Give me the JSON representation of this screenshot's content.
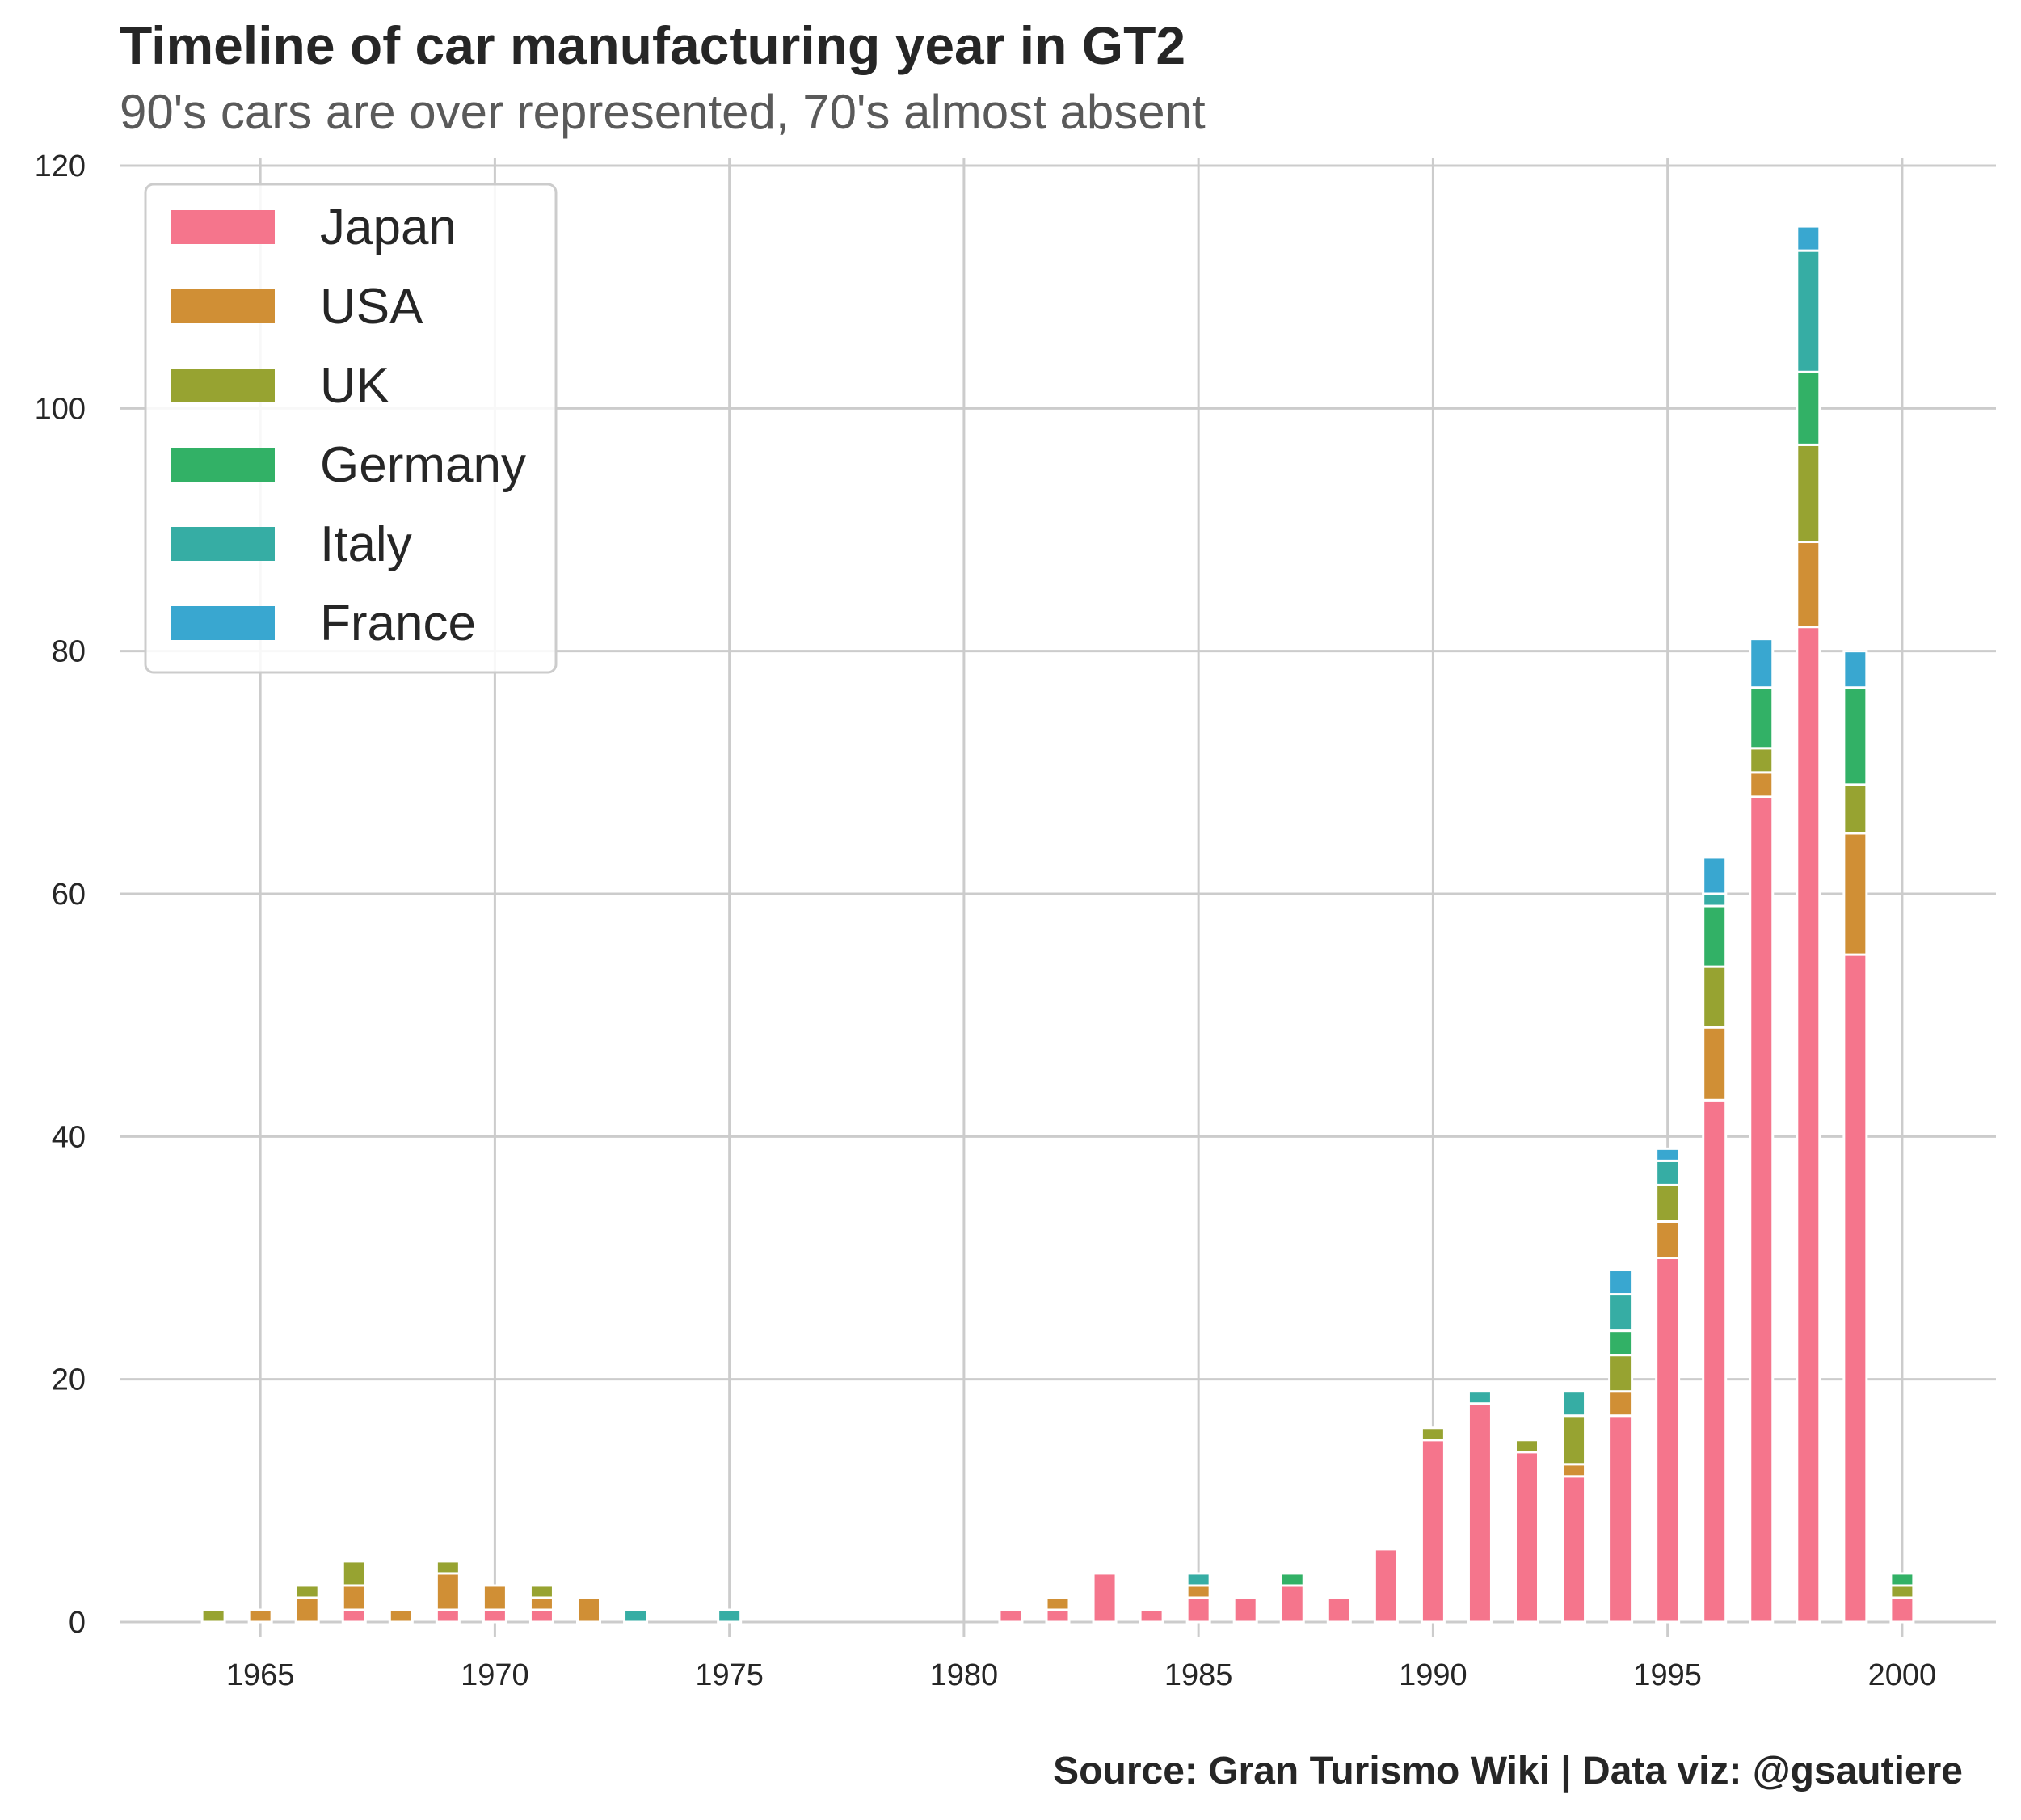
{
  "chart_data": {
    "type": "bar",
    "stacked": true,
    "title": "Timeline of car manufacturing year in GT2",
    "subtitle": "90's cars are over represented, 70's almost absent",
    "source": "Source: Gran Turismo Wiki | Data viz: @gsautiere",
    "xlabel": "",
    "ylabel": "",
    "xlim": [
      1962,
      2002
    ],
    "ylim": [
      0,
      120
    ],
    "x_ticks": [
      1965,
      1970,
      1975,
      1980,
      1985,
      1990,
      1995,
      2000
    ],
    "y_ticks": [
      0,
      20,
      40,
      60,
      80,
      100,
      120
    ],
    "grid": true,
    "legend_position": "top-left",
    "x": [
      1964,
      1965,
      1966,
      1967,
      1968,
      1969,
      1970,
      1971,
      1972,
      1973,
      1975,
      1981,
      1982,
      1983,
      1984,
      1985,
      1986,
      1987,
      1988,
      1989,
      1990,
      1991,
      1992,
      1993,
      1994,
      1995,
      1996,
      1997,
      1998,
      1999,
      2000
    ],
    "series": [
      {
        "name": "Japan",
        "color": "#f5758c",
        "values": [
          0,
          0,
          0,
          1,
          0,
          1,
          1,
          1,
          0,
          0,
          0,
          1,
          1,
          4,
          1,
          2,
          2,
          3,
          2,
          6,
          15,
          18,
          14,
          12,
          17,
          30,
          43,
          68,
          82,
          55,
          2
        ]
      },
      {
        "name": "USA",
        "color": "#d08f35",
        "values": [
          0,
          1,
          2,
          2,
          1,
          3,
          2,
          1,
          2,
          0,
          0,
          0,
          1,
          0,
          0,
          1,
          0,
          0,
          0,
          0,
          0,
          0,
          0,
          1,
          2,
          3,
          6,
          2,
          7,
          10,
          0
        ]
      },
      {
        "name": "UK",
        "color": "#97a331",
        "values": [
          1,
          0,
          1,
          2,
          0,
          1,
          0,
          1,
          0,
          0,
          0,
          0,
          0,
          0,
          0,
          0,
          0,
          0,
          0,
          0,
          1,
          0,
          1,
          4,
          3,
          3,
          5,
          2,
          8,
          4,
          1
        ]
      },
      {
        "name": "Germany",
        "color": "#32b166",
        "values": [
          0,
          0,
          0,
          0,
          0,
          0,
          0,
          0,
          0,
          0,
          0,
          0,
          0,
          0,
          0,
          0,
          0,
          1,
          0,
          0,
          0,
          0,
          0,
          0,
          2,
          0,
          5,
          5,
          6,
          8,
          1
        ]
      },
      {
        "name": "Italy",
        "color": "#36ada4",
        "values": [
          0,
          0,
          0,
          0,
          0,
          0,
          0,
          0,
          0,
          1,
          1,
          0,
          0,
          0,
          0,
          1,
          0,
          0,
          0,
          0,
          0,
          1,
          0,
          2,
          3,
          2,
          1,
          0,
          10,
          0,
          0
        ]
      },
      {
        "name": "France",
        "color": "#39a7d0",
        "values": [
          0,
          0,
          0,
          0,
          0,
          0,
          0,
          0,
          0,
          0,
          0,
          0,
          0,
          0,
          0,
          0,
          0,
          0,
          0,
          0,
          0,
          0,
          0,
          0,
          2,
          1,
          3,
          4,
          2,
          3,
          0
        ]
      }
    ]
  }
}
